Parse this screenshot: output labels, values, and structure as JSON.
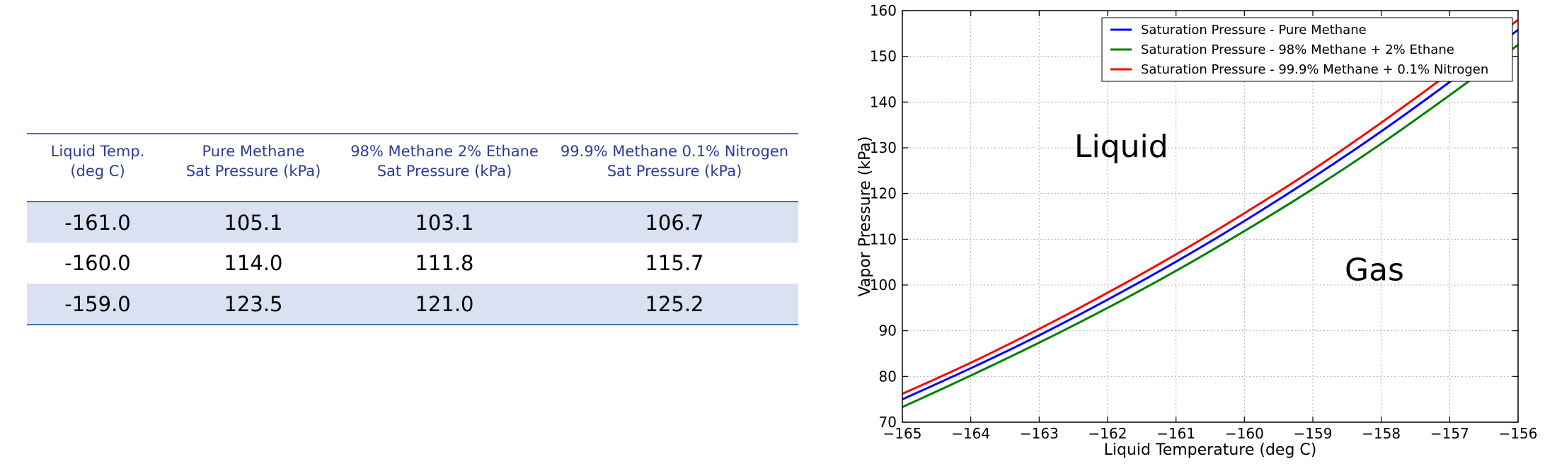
{
  "table": {
    "headers": [
      {
        "line1": "Liquid Temp.",
        "line2": "(deg C)"
      },
      {
        "line1": "Pure Methane",
        "line2": "Sat Pressure (kPa)"
      },
      {
        "line1": "98% Methane 2% Ethane",
        "line2": "Sat Pressure (kPa)"
      },
      {
        "line1": "99.9% Methane 0.1% Nitrogen",
        "line2": "Sat Pressure (kPa)"
      }
    ],
    "rows": [
      [
        "-161.0",
        "105.1",
        "103.1",
        "106.7"
      ],
      [
        "-160.0",
        "114.0",
        "111.8",
        "115.7"
      ],
      [
        "-159.0",
        "123.5",
        "121.0",
        "125.2"
      ]
    ],
    "colors": {
      "header_text": "#2e3b9a",
      "rule": "#4472c4",
      "band": "#d9e1f2"
    }
  },
  "chart_data": {
    "type": "line",
    "xlabel": "Liquid Temperature (deg C)",
    "ylabel": "Vapor Pressure (kPa)",
    "xlim": [
      -165,
      -156
    ],
    "ylim": [
      70,
      160
    ],
    "xticks": [
      -165,
      -164,
      -163,
      -162,
      -161,
      -160,
      -159,
      -158,
      -157,
      -156
    ],
    "yticks": [
      70,
      80,
      90,
      100,
      110,
      120,
      130,
      140,
      150,
      160
    ],
    "xtick_labels": [
      "−165",
      "−164",
      "−163",
      "−162",
      "−161",
      "−160",
      "−159",
      "−158",
      "−157",
      "−156"
    ],
    "ytick_labels": [
      "70",
      "80",
      "90",
      "100",
      "110",
      "120",
      "130",
      "140",
      "150",
      "160"
    ],
    "grid": true,
    "legend_position": "top-right",
    "x": [
      -165,
      -164,
      -163,
      -162,
      -161,
      -160,
      -159,
      -158,
      -157,
      -156
    ],
    "series": [
      {
        "name": "Saturation Pressure - Pure Methane",
        "color": "#0000ff",
        "values": [
          75.0,
          81.8,
          89.0,
          96.8,
          105.1,
          114.0,
          123.5,
          133.6,
          144.4,
          155.8
        ]
      },
      {
        "name": "Saturation Pressure - 98% Methane + 2% Ethane",
        "color": "#008000",
        "values": [
          73.3,
          80.2,
          87.4,
          95.0,
          103.1,
          111.8,
          121.0,
          130.9,
          141.5,
          152.5
        ]
      },
      {
        "name": "Saturation Pressure - 99.9% Methane + 0.1% Nitrogen",
        "color": "#ff0000",
        "values": [
          76.2,
          83.0,
          90.4,
          98.3,
          106.7,
          115.7,
          125.2,
          135.5,
          146.4,
          158.0
        ]
      }
    ],
    "annotations": [
      {
        "text": "Liquid",
        "x": -161.8,
        "y": 128
      },
      {
        "text": "Gas",
        "x": -158.1,
        "y": 101
      }
    ]
  }
}
